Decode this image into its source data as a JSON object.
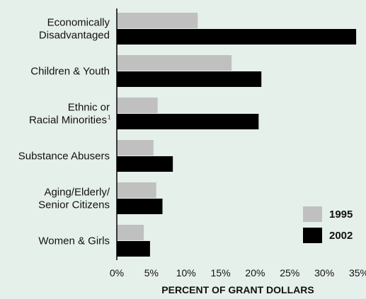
{
  "chart_data": {
    "type": "bar",
    "orientation": "horizontal",
    "categories": [
      [
        "Economically",
        "Disadvantaged"
      ],
      [
        "Children & Youth"
      ],
      [
        "Ethnic or",
        "Racial Minorities"
      ],
      [
        "Substance Abusers"
      ],
      [
        "Aging/Elderly/",
        "Senior Citizens"
      ],
      [
        "Women & Girls"
      ]
    ],
    "footnote_marker": "1",
    "series": [
      {
        "name": "1995",
        "color": "#c0c0c0",
        "values": [
          11.7,
          16.6,
          5.9,
          5.3,
          5.7,
          3.9
        ]
      },
      {
        "name": "2002",
        "color": "#000000",
        "values": [
          34.6,
          20.9,
          20.5,
          8.1,
          6.6,
          4.8
        ]
      }
    ],
    "xlabel": "PERCENT OF GRANT DOLLARS",
    "xlim": [
      0,
      35
    ],
    "xticks": [
      0,
      5,
      10,
      15,
      20,
      25,
      30,
      35
    ],
    "xtick_labels": [
      "0%",
      "5%",
      "10%",
      "15%",
      "20%",
      "25%",
      "30%",
      "35%"
    ],
    "grid": false,
    "legend_position": "bottom-right",
    "colors": {
      "background": "#e6f0ea",
      "axis": "#000000"
    }
  }
}
